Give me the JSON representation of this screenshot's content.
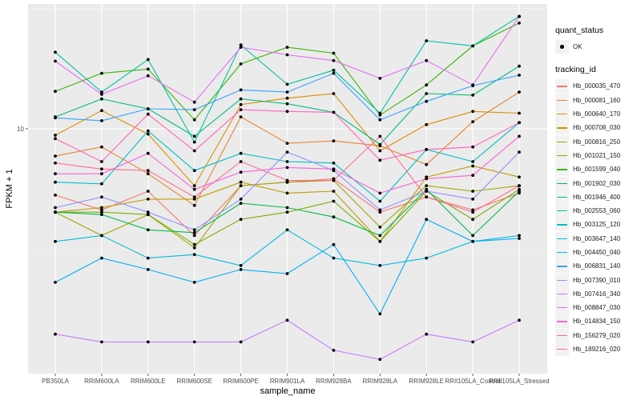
{
  "chart_data": {
    "type": "line",
    "title": "",
    "xlabel": "sample_name",
    "ylabel": "FPKM + 1",
    "y_scale": "log10",
    "ylim": [
      0.96,
      33
    ],
    "y_ticks": [
      10
    ],
    "y_tick_labels": [
      "10"
    ],
    "grid": true,
    "legend_position": "right",
    "categories": [
      "PB350LA",
      "RRIM600LA",
      "RRIM600LE",
      "RRIM600SE",
      "RRIM600PE",
      "RRIM901LA",
      "RRIM928BA",
      "RRIM928LA",
      "RRIM928LE",
      "RRII105LA_Control",
      "RRII105LA_Stressed"
    ],
    "shape_legend": {
      "title": "quant_status",
      "items": [
        {
          "label": "OK",
          "shape": "point"
        }
      ]
    },
    "color_legend_title": "tracking_id",
    "series": [
      {
        "name": "Hb_000035_470",
        "color": "#F8766D",
        "values": [
          5.3,
          4.6,
          5.5,
          3.6,
          5.8,
          6.0,
          6.2,
          4.5,
          5.2,
          4.6,
          5.4
        ]
      },
      {
        "name": "Hb_000081_160",
        "color": "#EA8331",
        "values": [
          7.7,
          8.4,
          6.5,
          4.8,
          11.2,
          8.7,
          8.9,
          8.5,
          7.1,
          10.7,
          14.2
        ]
      },
      {
        "name": "Hb_000640_170",
        "color": "#D89000",
        "values": [
          9.4,
          11.9,
          9.5,
          5.8,
          12.6,
          13.4,
          14.0,
          8.1,
          10.4,
          11.8,
          11.6
        ]
      },
      {
        "name": "Hb_000708_030",
        "color": "#C09B00",
        "values": [
          4.5,
          4.7,
          5.1,
          5.1,
          6.0,
          5.4,
          5.5,
          3.4,
          6.3,
          7.0,
          6.3
        ]
      },
      {
        "name": "Hb_000816_250",
        "color": "#A3A500",
        "values": [
          4.5,
          3.6,
          4.4,
          3.2,
          5.8,
          6.0,
          6.1,
          3.9,
          5.8,
          5.5,
          5.8
        ]
      },
      {
        "name": "Hb_001021_150",
        "color": "#7CAE00",
        "values": [
          4.5,
          4.5,
          4.4,
          3.3,
          4.2,
          4.5,
          5.0,
          3.4,
          5.5,
          4.2,
          5.6
        ]
      },
      {
        "name": "Hb_001599_040",
        "color": "#39B600",
        "values": [
          14.3,
          17.0,
          17.7,
          10.9,
          18.6,
          21.8,
          20.6,
          11.4,
          15.2,
          22.1,
          27.5
        ]
      },
      {
        "name": "Hb_001902_030",
        "color": "#00BB4E",
        "values": [
          4.5,
          4.4,
          3.8,
          3.7,
          4.9,
          4.7,
          4.3,
          3.6,
          5.6,
          3.6,
          5.5
        ]
      },
      {
        "name": "Hb_001946_400",
        "color": "#00BF7D",
        "values": [
          11.2,
          13.3,
          12.1,
          9.3,
          13.3,
          12.7,
          11.7,
          8.6,
          14.0,
          13.8,
          18.2
        ]
      },
      {
        "name": "Hb_002553_060",
        "color": "#00C1A3",
        "values": [
          20.8,
          14.2,
          19.4,
          8.8,
          22.3,
          15.3,
          17.5,
          11.6,
          23.2,
          22.1,
          29.3
        ]
      },
      {
        "name": "Hb_003125_120",
        "color": "#00BFC4",
        "values": [
          6.0,
          5.9,
          9.8,
          6.7,
          7.9,
          7.3,
          7.2,
          5.0,
          8.2,
          7.3,
          10.6
        ]
      },
      {
        "name": "Hb_003647_140",
        "color": "#00BAE0",
        "values": [
          3.4,
          3.6,
          2.9,
          3.0,
          2.7,
          3.8,
          2.9,
          2.7,
          2.9,
          3.4,
          3.6
        ]
      },
      {
        "name": "Hb_004450_040",
        "color": "#00B0F6",
        "values": [
          2.3,
          2.9,
          2.6,
          2.3,
          2.6,
          2.5,
          3.3,
          1.7,
          4.2,
          3.4,
          3.5
        ]
      },
      {
        "name": "Hb_006831_140",
        "color": "#35A2FF",
        "values": [
          11.1,
          10.8,
          12.1,
          12.0,
          14.5,
          14.2,
          17.0,
          10.9,
          13.0,
          15.1,
          16.7
        ]
      },
      {
        "name": "Hb_007390_010",
        "color": "#9590FF",
        "values": [
          4.7,
          5.2,
          4.5,
          3.8,
          5.1,
          8.0,
          6.7,
          4.6,
          5.5,
          5.1,
          8.0
        ]
      },
      {
        "name": "Hb_007416_340",
        "color": "#C77CFF",
        "values": [
          1.4,
          1.3,
          1.3,
          1.3,
          1.3,
          1.6,
          1.2,
          1.1,
          1.4,
          1.3,
          1.6
        ]
      },
      {
        "name": "Hb_008847_030",
        "color": "#E76BF3",
        "values": [
          19.1,
          13.9,
          16.6,
          12.9,
          21.8,
          20.3,
          19.2,
          16.2,
          19.2,
          15.2,
          29.3
        ]
      },
      {
        "name": "Hb_014834_150",
        "color": "#FA62DB",
        "values": [
          6.5,
          6.5,
          7.9,
          5.6,
          6.6,
          6.9,
          6.8,
          5.4,
          6.2,
          6.4,
          9.3
        ]
      },
      {
        "name": "Hb_156279_020",
        "color": "#FF62BC",
        "values": [
          9.1,
          7.3,
          11.5,
          8.1,
          12.0,
          11.8,
          11.7,
          7.4,
          8.2,
          8.4,
          10.6
        ]
      },
      {
        "name": "Hb_189216_020",
        "color": "#FF6C91",
        "values": [
          7.2,
          6.8,
          6.7,
          5.2,
          7.3,
          6.1,
          6.1,
          9.3,
          5.2,
          4.5,
          5.8
        ]
      }
    ]
  }
}
